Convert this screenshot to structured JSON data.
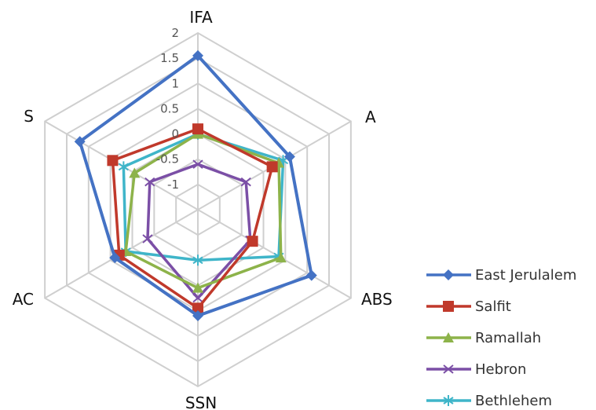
{
  "chart_data": {
    "type": "radar",
    "axes": [
      "IFA",
      "A",
      "ABS",
      "SSN",
      "AC",
      "S"
    ],
    "rlim": [
      -1.5,
      2
    ],
    "ticks": [
      "2",
      "1.5",
      "1",
      "0.5",
      "0",
      "-0.5",
      "-1"
    ],
    "tick_values": [
      2,
      1.5,
      1,
      0.5,
      0,
      -0.5,
      -1
    ],
    "grid": true,
    "legend_position": "bottom-right",
    "series": [
      {
        "name": "East Jerulalem",
        "color": "#4472C4",
        "marker": "diamond",
        "values": [
          1.55,
          0.6,
          1.1,
          0.6,
          0.4,
          1.2
        ]
      },
      {
        "name": "Salfit",
        "color": "#C0392B",
        "marker": "square",
        "values": [
          0.1,
          0.2,
          -0.25,
          0.45,
          0.3,
          0.45
        ]
      },
      {
        "name": "Ramallah",
        "color": "#8DB34A",
        "marker": "triangle",
        "values": [
          0.0,
          0.35,
          0.4,
          0.05,
          0.15,
          -0.05
        ]
      },
      {
        "name": "Hebron",
        "color": "#7B4FA6",
        "marker": "x",
        "values": [
          -0.6,
          -0.4,
          -0.3,
          0.25,
          -0.35,
          -0.4
        ]
      },
      {
        "name": "Bethlehem",
        "color": "#3FB5C9",
        "marker": "star",
        "values": [
          0.0,
          0.45,
          0.35,
          -0.5,
          0.15,
          0.2
        ]
      }
    ]
  }
}
